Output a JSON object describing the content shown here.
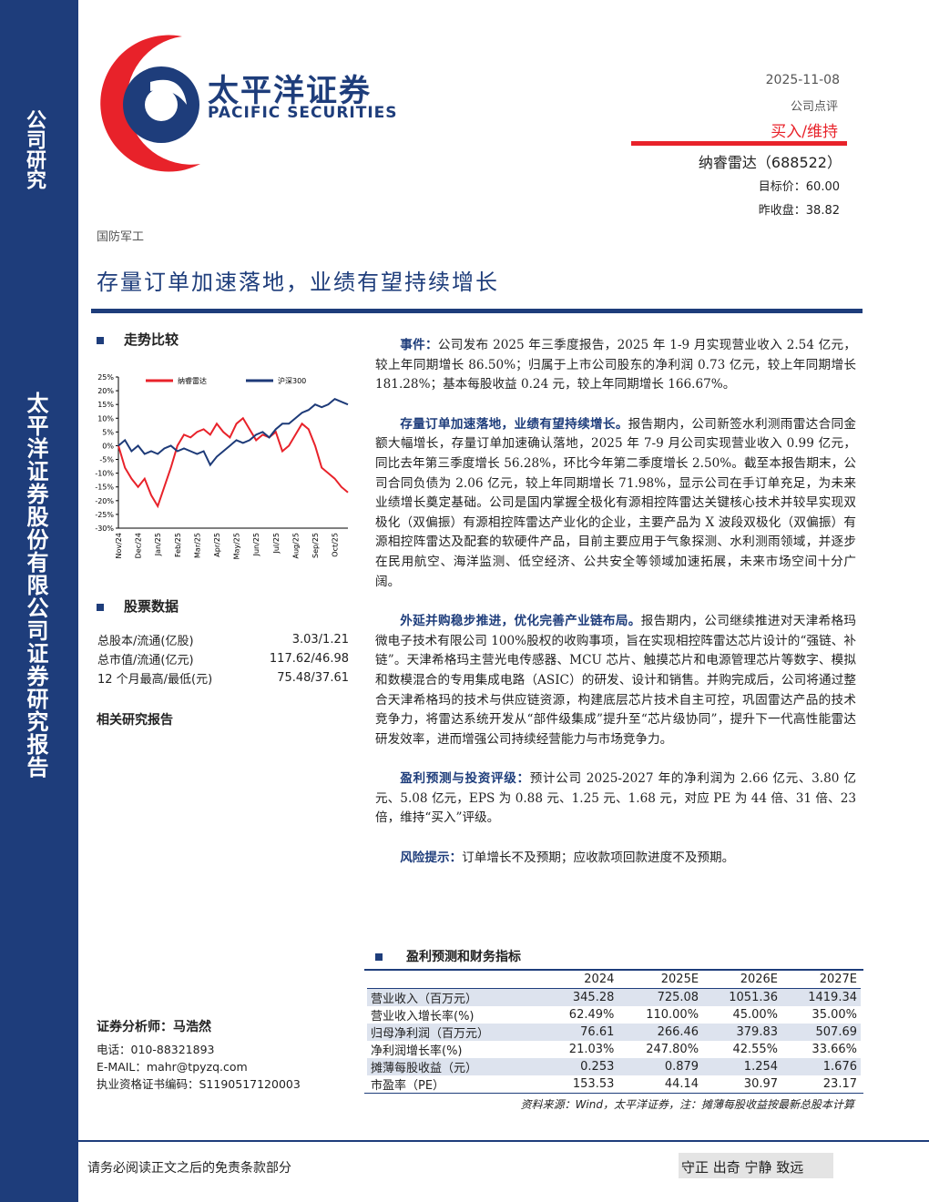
{
  "sidebar": {
    "top": "公司研究",
    "main": "太平洋证券股份有限公司证券研究报告"
  },
  "header": {
    "logo_cn": "太平洋证券",
    "logo_en": "PACIFIC SECURITIES",
    "date": "2025-11-08",
    "report_type": "公司点评",
    "rating": "买入/维持",
    "company": "纳睿雷达（688522）",
    "target_price": "目标价：60.00",
    "close_price": "昨收盘：38.82",
    "industry": "国防军工",
    "title": "存量订单加速落地，业绩有望持续增长"
  },
  "left": {
    "trend_title": "走势比较",
    "stock_title": "股票数据",
    "stock_rows": [
      [
        "总股本/流通(亿股)",
        "3.03/1.21"
      ],
      [
        "总市值/流通(亿元)",
        "117.62/46.98"
      ],
      [
        "12 个月最高/最低(元)",
        "75.48/37.61"
      ]
    ],
    "related_title": "相关研究报告",
    "analyst": "证券分析师：马浩然",
    "phone": "电话：010-88321893",
    "email": "E-MAIL：mahr@tpyzq.com",
    "license": "执业资格证书编码：S1190517120003"
  },
  "chart_data": {
    "type": "line",
    "categories": [
      "Nov/24",
      null,
      null,
      "Dec/24",
      null,
      null,
      "Jan/25",
      null,
      null,
      "Feb/25",
      null,
      null,
      "Mar/25",
      null,
      null,
      "Apr/25",
      null,
      null,
      "May/25",
      null,
      null,
      "Jun/25",
      null,
      null,
      "Jul/25",
      null,
      null,
      "Aug/25",
      null,
      null,
      "Sep/25",
      null,
      null,
      "Oct/25",
      null,
      null
    ],
    "series": [
      {
        "name": "纳睿雷达",
        "color": "#e8222a",
        "values": [
          0,
          -8,
          -12,
          -15,
          -12,
          -18,
          -22,
          -15,
          -8,
          0,
          4,
          3,
          5,
          6,
          4,
          8,
          5,
          3,
          8,
          10,
          6,
          2,
          4,
          3,
          5,
          -2,
          0,
          4,
          8,
          6,
          0,
          -8,
          -10,
          -12,
          -15,
          -17
        ]
      },
      {
        "name": "沪深300",
        "color": "#1d3a78",
        "values": [
          0,
          2,
          -2,
          0,
          -3,
          -2,
          -3,
          -1,
          0,
          -2,
          -1,
          -2,
          -3,
          -2,
          -7,
          -4,
          -2,
          0,
          2,
          1,
          2,
          4,
          5,
          3,
          6,
          8,
          8,
          10,
          12,
          13,
          15,
          14,
          15,
          17,
          16,
          15
        ]
      }
    ],
    "ylim": [
      -30,
      25
    ],
    "yticks": [
      {
        "value": 25,
        "label": "25%"
      },
      {
        "value": 20,
        "label": "20%"
      },
      {
        "value": 15,
        "label": "15%"
      },
      {
        "value": 10,
        "label": "10%"
      },
      {
        "value": 5,
        "label": "5%"
      },
      {
        "value": 0,
        "label": "0%"
      },
      {
        "value": -5,
        "label": "-5%"
      },
      {
        "value": -10,
        "label": "-10%"
      },
      {
        "value": -15,
        "label": "-15%"
      },
      {
        "value": -20,
        "label": "-20%"
      },
      {
        "value": -25,
        "label": "-25%"
      },
      {
        "value": -30,
        "label": "-30%"
      }
    ]
  },
  "body": {
    "paragraphs": [
      {
        "lead": "事件：",
        "text": "公司发布 2025 年三季度报告，2025 年 1-9 月实现营业收入 2.54 亿元，较上年同期增长 86.50%；归属于上市公司股东的净利润 0.73 亿元，较上年同期增长 181.28%；基本每股收益 0.24 元，较上年同期增长 166.67%。"
      },
      {
        "lead": "存量订单加速落地，业绩有望持续增长。",
        "text": "报告期内，公司新签水利测雨雷达合同金额大幅增长，存量订单加速确认落地，2025 年 7-9 月公司实现营业收入 0.99 亿元，同比去年第三季度增长 56.28%，环比今年第二季度增长 2.50%。截至本报告期末，公司合同负债为 2.06 亿元，较上年同期增长 71.98%，显示公司在手订单充足，为未来业绩增长奠定基础。公司是国内掌握全极化有源相控阵雷达关键核心技术并较早实现双极化（双偏振）有源相控阵雷达产业化的企业，主要产品为 X 波段双极化（双偏振）有源相控阵雷达及配套的软硬件产品，目前主要应用于气象探测、水利测雨领域，并逐步在民用航空、海洋监测、低空经济、公共安全等领域加速拓展，未来市场空间十分广阔。"
      },
      {
        "lead": "外延并购稳步推进，优化完善产业链布局。",
        "text": "报告期内，公司继续推进对天津希格玛微电子技术有限公司 100%股权的收购事项，旨在实现相控阵雷达芯片设计的“强链、补链”。天津希格玛主营光电传感器、MCU 芯片、触摸芯片和电源管理芯片等数字、模拟和数模混合的专用集成电路（ASIC）的研发、设计和销售。并购完成后，公司将通过整合天津希格玛的技术与供应链资源，构建底层芯片技术自主可控，巩固雷达产品的技术竞争力，将雷达系统开发从“部件级集成”提升至“芯片级协同”，提升下一代高性能雷达研发效率，进而增强公司持续经营能力与市场竞争力。"
      },
      {
        "lead": "盈利预测与投资评级：",
        "text": "预计公司 2025-2027 年的净利润为 2.66 亿元、3.80 亿元、5.08 亿元，EPS 为 0.88 元、1.25 元、1.68 元，对应 PE 为 44 倍、31 倍、23 倍，维持“买入”评级。"
      },
      {
        "lead": "风险提示：",
        "text": "订单增长不及预期；应收款项回款进度不及预期。"
      }
    ]
  },
  "table": {
    "title": "盈利预测和财务指标",
    "header": [
      "2024",
      "2025E",
      "2026E",
      "2027E"
    ],
    "rows": [
      [
        "营业收入（百万元）",
        "345.28",
        "725.08",
        "1051.36",
        "1419.34"
      ],
      [
        "营业收入增长率(%)",
        "62.49%",
        "110.00%",
        "45.00%",
        "35.00%"
      ],
      [
        "归母净利润（百万元）",
        "76.61",
        "266.46",
        "379.83",
        "507.69"
      ],
      [
        "净利润增长率(%)",
        "21.03%",
        "247.80%",
        "42.55%",
        "33.66%"
      ],
      [
        "摊薄每股收益（元）",
        "0.253",
        "0.879",
        "1.254",
        "1.676"
      ],
      [
        "市盈率（PE）",
        "153.53",
        "44.14",
        "30.97",
        "23.17"
      ]
    ],
    "source": "资料来源：Wind，太平洋证券，注：摊薄每股收益按最新总股本计算"
  },
  "footer": {
    "disclaimer": "请务必阅读正文之后的免责条款部分",
    "motto": "守正 出奇 宁静 致远"
  }
}
